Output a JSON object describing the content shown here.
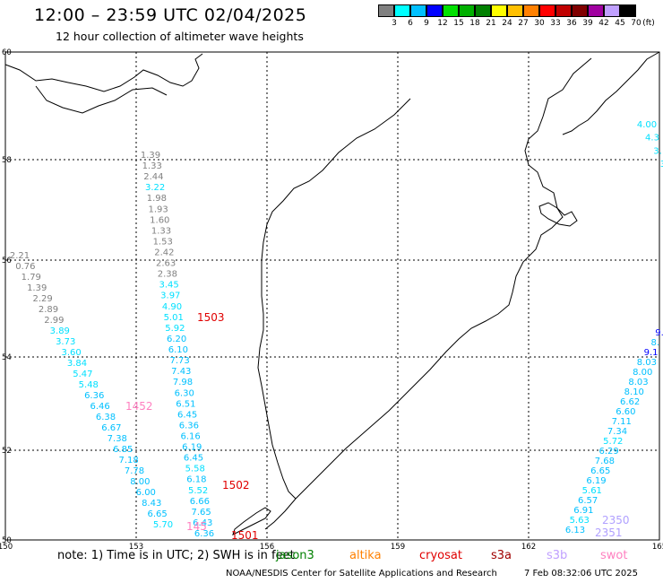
{
  "title": "12:00 – 23:59 UTC 02/04/2025",
  "subtitle": "12 hour collection of altimeter wave heights",
  "legend": {
    "unit": "(ft)",
    "items": [
      {
        "label": "3",
        "color": "#808080"
      },
      {
        "label": "6",
        "color": "#00ffff"
      },
      {
        "label": "9",
        "color": "#00c0ff"
      },
      {
        "label": "12",
        "color": "#0000ff"
      },
      {
        "label": "15",
        "color": "#00e000"
      },
      {
        "label": "18",
        "color": "#00b000"
      },
      {
        "label": "21",
        "color": "#008000"
      },
      {
        "label": "24",
        "color": "#ffff00"
      },
      {
        "label": "27",
        "color": "#ffc000"
      },
      {
        "label": "30",
        "color": "#ff8000"
      },
      {
        "label": "33",
        "color": "#ff0000"
      },
      {
        "label": "36",
        "color": "#c00000"
      },
      {
        "label": "39",
        "color": "#800000"
      },
      {
        "label": "42",
        "color": "#a000a0"
      },
      {
        "label": "45",
        "color": "#c0a0ff"
      },
      {
        "label": "70",
        "color": "#000000"
      }
    ]
  },
  "axes": {
    "lon_ticks": [
      "150",
      "153",
      "156",
      "159",
      "162",
      "165"
    ],
    "lat_ticks": [
      "60",
      "58",
      "56",
      "54",
      "52",
      "50"
    ]
  },
  "tracks": [
    {
      "points": [
        {
          "v": "1.39",
          "c": "#808080"
        },
        {
          "v": "1.33",
          "c": "#808080"
        },
        {
          "v": "2.44",
          "c": "#808080"
        },
        {
          "v": "3.22",
          "c": "#00e0ff"
        },
        {
          "v": "1.98",
          "c": "#808080"
        },
        {
          "v": "1.93",
          "c": "#808080"
        },
        {
          "v": "1.60",
          "c": "#808080"
        },
        {
          "v": "1.33",
          "c": "#808080"
        },
        {
          "v": "1.53",
          "c": "#808080"
        },
        {
          "v": "2.42",
          "c": "#808080"
        },
        {
          "v": "2.63",
          "c": "#808080"
        },
        {
          "v": "2.38",
          "c": "#808080"
        },
        {
          "v": "3.45",
          "c": "#00e0ff"
        },
        {
          "v": "3.97",
          "c": "#00e0ff"
        },
        {
          "v": "4.90",
          "c": "#00e0ff"
        },
        {
          "v": "5.01",
          "c": "#00e0ff"
        },
        {
          "v": "5.92",
          "c": "#00e0ff"
        },
        {
          "v": "6.20",
          "c": "#00c0ff"
        },
        {
          "v": "6.10",
          "c": "#00c0ff"
        },
        {
          "v": "7.73",
          "c": "#00c0ff"
        },
        {
          "v": "7.43",
          "c": "#00c0ff"
        },
        {
          "v": "7.98",
          "c": "#00c0ff"
        },
        {
          "v": "6.30",
          "c": "#00c0ff"
        },
        {
          "v": "6.51",
          "c": "#00c0ff"
        },
        {
          "v": "6.45",
          "c": "#00c0ff"
        },
        {
          "v": "6.36",
          "c": "#00c0ff"
        },
        {
          "v": "6.16",
          "c": "#00c0ff"
        },
        {
          "v": "6.19",
          "c": "#00c0ff"
        },
        {
          "v": "6.45",
          "c": "#00c0ff"
        },
        {
          "v": "5.58",
          "c": "#00e0ff"
        },
        {
          "v": "6.18",
          "c": "#00c0ff"
        },
        {
          "v": "5.52",
          "c": "#00e0ff"
        },
        {
          "v": "6.66",
          "c": "#00c0ff"
        },
        {
          "v": "7.65",
          "c": "#00c0ff"
        },
        {
          "v": "6.43",
          "c": "#00c0ff"
        },
        {
          "v": "6.36",
          "c": "#00c0ff"
        }
      ]
    },
    {
      "points": [
        {
          "v": "2.21",
          "c": "#808080"
        },
        {
          "v": "0.76",
          "c": "#808080"
        },
        {
          "v": "1.79",
          "c": "#808080"
        },
        {
          "v": "1.39",
          "c": "#808080"
        },
        {
          "v": "2.29",
          "c": "#808080"
        },
        {
          "v": "2.89",
          "c": "#808080"
        },
        {
          "v": "2.99",
          "c": "#808080"
        },
        {
          "v": "3.89",
          "c": "#00e0ff"
        },
        {
          "v": "3.73",
          "c": "#00e0ff"
        },
        {
          "v": "3.60",
          "c": "#00e0ff"
        },
        {
          "v": "3.84",
          "c": "#00e0ff"
        },
        {
          "v": "5.47",
          "c": "#00e0ff"
        },
        {
          "v": "5.48",
          "c": "#00e0ff"
        },
        {
          "v": "6.36",
          "c": "#00c0ff"
        },
        {
          "v": "6.46",
          "c": "#00c0ff"
        },
        {
          "v": "6.38",
          "c": "#00c0ff"
        },
        {
          "v": "6.67",
          "c": "#00c0ff"
        },
        {
          "v": "7.38",
          "c": "#00c0ff"
        },
        {
          "v": "6.85",
          "c": "#00c0ff"
        },
        {
          "v": "7.18",
          "c": "#00c0ff"
        },
        {
          "v": "7.78",
          "c": "#00c0ff"
        },
        {
          "v": "8.00",
          "c": "#00c0ff"
        },
        {
          "v": "6.00",
          "c": "#00c0ff"
        },
        {
          "v": "8.43",
          "c": "#00c0ff"
        },
        {
          "v": "6.65",
          "c": "#00c0ff"
        },
        {
          "v": "5.70",
          "c": "#00e0ff"
        }
      ]
    },
    {
      "points": [
        {
          "v": "9.",
          "c": "#0000ff"
        },
        {
          "v": "8.",
          "c": "#00c0ff"
        },
        {
          "v": "9.1",
          "c": "#0000ff"
        },
        {
          "v": "8.03",
          "c": "#00c0ff"
        },
        {
          "v": "8.00",
          "c": "#00c0ff"
        },
        {
          "v": "8.03",
          "c": "#00c0ff"
        },
        {
          "v": "8.10",
          "c": "#00c0ff"
        },
        {
          "v": "6.62",
          "c": "#00c0ff"
        },
        {
          "v": "6.60",
          "c": "#00c0ff"
        },
        {
          "v": "7.11",
          "c": "#00c0ff"
        },
        {
          "v": "7.34",
          "c": "#00c0ff"
        },
        {
          "v": "5.72",
          "c": "#00e0ff"
        },
        {
          "v": "6.29",
          "c": "#00c0ff"
        },
        {
          "v": "7.68",
          "c": "#00c0ff"
        },
        {
          "v": "6.65",
          "c": "#00c0ff"
        },
        {
          "v": "6.19",
          "c": "#00c0ff"
        },
        {
          "v": "5.61",
          "c": "#00e0ff"
        },
        {
          "v": "6.57",
          "c": "#00c0ff"
        },
        {
          "v": "6.91",
          "c": "#00c0ff"
        },
        {
          "v": "5.63",
          "c": "#00e0ff"
        },
        {
          "v": "6.13",
          "c": "#00c0ff"
        }
      ]
    },
    {
      "points": [
        {
          "v": "4.00",
          "c": "#00e0ff"
        },
        {
          "v": "4.3",
          "c": "#00e0ff"
        },
        {
          "v": "3.",
          "c": "#00e0ff"
        },
        {
          "v": "3",
          "c": "#00e0ff"
        }
      ]
    }
  ],
  "pass_labels": [
    {
      "text": "1503",
      "color": "#e00000"
    },
    {
      "text": "1452",
      "color": "#ff80c0"
    },
    {
      "text": "1502",
      "color": "#e00000"
    },
    {
      "text": "1501",
      "color": "#e00000"
    },
    {
      "text": "145",
      "color": "#ff80c0"
    },
    {
      "text": "2350",
      "color": "#b0a0ff"
    },
    {
      "text": "2351",
      "color": "#b0a0ff"
    }
  ],
  "note": "note: 1) Time is in UTC; 2) SWH is in feet",
  "satellites": [
    {
      "name": "jason3",
      "color": "#008000"
    },
    {
      "name": "altika",
      "color": "#ff8000"
    },
    {
      "name": "cryosat",
      "color": "#e00000"
    },
    {
      "name": "s3a",
      "color": "#a00000"
    },
    {
      "name": "s3b",
      "color": "#c0a0ff"
    },
    {
      "name": "swot",
      "color": "#ff80c0"
    }
  ],
  "credit": "NOAA/NESDIS Center for Satellite Applications and Research",
  "timestamp": "7 Feb 08:32:06 UTC 2025"
}
